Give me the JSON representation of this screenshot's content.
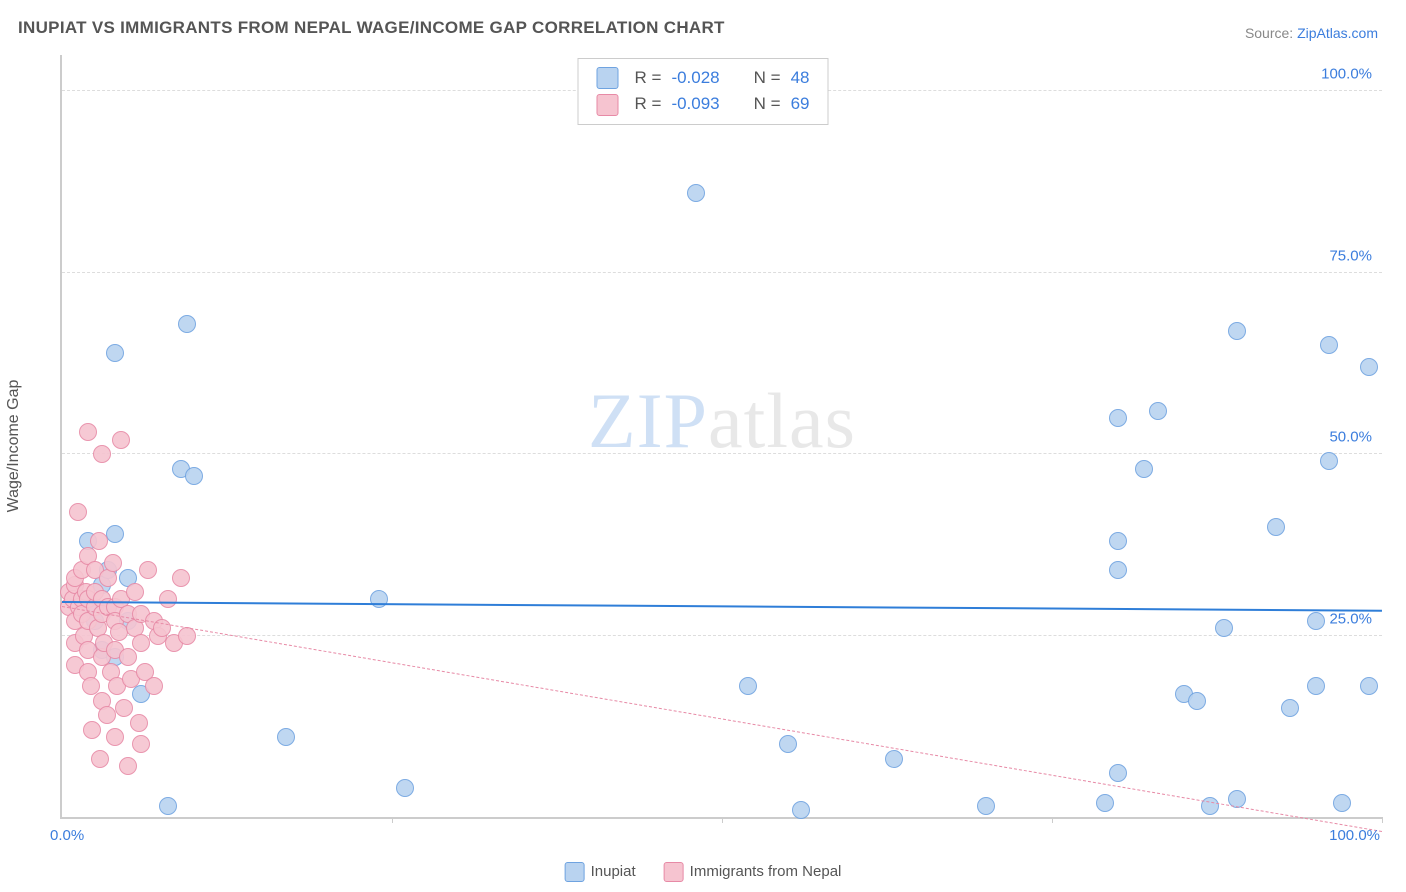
{
  "title": "INUPIAT VS IMMIGRANTS FROM NEPAL WAGE/INCOME GAP CORRELATION CHART",
  "source_prefix": "Source: ",
  "source_link": "ZipAtlas.com",
  "ylabel": "Wage/Income Gap",
  "watermark_a": "ZIP",
  "watermark_b": "atlas",
  "chart": {
    "type": "scatter",
    "background_color": "#ffffff",
    "grid_color": "#dddddd",
    "axis_color": "#cccccc",
    "xlim": [
      0,
      100
    ],
    "ylim": [
      0,
      105
    ],
    "ytick_values": [
      25,
      50,
      75,
      100
    ],
    "ytick_labels": [
      "25.0%",
      "50.0%",
      "75.0%",
      "100.0%"
    ],
    "xtick_left": "0.0%",
    "xtick_right": "100.0%",
    "xtick_positions": [
      25,
      50,
      75,
      100
    ],
    "point_radius": 9,
    "point_border_width": 1.2,
    "point_fill_opacity": 0.35
  },
  "series": [
    {
      "key": "inupiat",
      "label": "Inupiat",
      "fill": "#b9d3f0",
      "stroke": "#6fa3e0",
      "trend": {
        "y_at_x0": 29.5,
        "y_at_x100": 28.3,
        "color": "#2f7ed8",
        "width": 2.3,
        "dash": "solid"
      },
      "R_label": "R = ",
      "R_value": "-0.028",
      "N_label": "N = ",
      "N_value": "48",
      "points": [
        [
          1.5,
          30
        ],
        [
          2,
          29
        ],
        [
          2,
          38
        ],
        [
          2.5,
          27
        ],
        [
          3,
          32
        ],
        [
          3,
          23
        ],
        [
          3.5,
          34
        ],
        [
          4,
          39
        ],
        [
          4,
          64
        ],
        [
          5,
          33
        ],
        [
          5,
          27
        ],
        [
          9,
          48
        ],
        [
          10,
          47
        ],
        [
          9.5,
          68
        ],
        [
          4,
          22
        ],
        [
          6,
          17
        ],
        [
          8,
          1.5
        ],
        [
          17,
          11
        ],
        [
          24,
          30
        ],
        [
          26,
          4
        ],
        [
          48,
          86
        ],
        [
          52,
          18
        ],
        [
          55,
          10
        ],
        [
          56,
          1
        ],
        [
          63,
          8
        ],
        [
          70,
          1.5
        ],
        [
          79,
          2
        ],
        [
          80,
          34
        ],
        [
          80,
          38
        ],
        [
          80,
          55
        ],
        [
          80,
          6
        ],
        [
          82,
          48
        ],
        [
          83,
          56
        ],
        [
          88,
          26
        ],
        [
          85,
          17
        ],
        [
          86,
          16
        ],
        [
          87,
          1.5
        ],
        [
          89,
          2.5
        ],
        [
          89,
          67
        ],
        [
          92,
          40
        ],
        [
          93,
          15
        ],
        [
          95,
          18
        ],
        [
          95,
          27
        ],
        [
          96,
          49
        ],
        [
          96,
          65
        ],
        [
          97,
          2
        ],
        [
          99,
          18
        ],
        [
          99,
          62
        ]
      ]
    },
    {
      "key": "nepal",
      "label": "Immigrants from Nepal",
      "fill": "#f6c4d0",
      "stroke": "#e78aa6",
      "trend": {
        "y_at_x0": 29.0,
        "y_at_x100": -2.0,
        "color": "#e78aa6",
        "width": 1.2,
        "dash": "dashed"
      },
      "R_label": "R = ",
      "R_value": "-0.093",
      "N_label": "N = ",
      "N_value": "69",
      "points": [
        [
          0.5,
          29
        ],
        [
          0.5,
          31
        ],
        [
          0.8,
          30
        ],
        [
          1,
          32
        ],
        [
          1,
          27
        ],
        [
          1,
          24
        ],
        [
          1,
          21
        ],
        [
          1,
          33
        ],
        [
          1.2,
          42
        ],
        [
          1.3,
          29
        ],
        [
          1.5,
          30
        ],
        [
          1.5,
          28
        ],
        [
          1.5,
          34
        ],
        [
          1.7,
          25
        ],
        [
          1.8,
          31
        ],
        [
          2,
          30
        ],
        [
          2,
          27
        ],
        [
          2,
          23
        ],
        [
          2,
          20
        ],
        [
          2,
          36
        ],
        [
          2,
          53
        ],
        [
          2.2,
          18
        ],
        [
          2.3,
          12
        ],
        [
          2.5,
          29
        ],
        [
          2.5,
          31
        ],
        [
          2.5,
          34
        ],
        [
          2.7,
          26
        ],
        [
          2.8,
          38
        ],
        [
          2.9,
          8
        ],
        [
          3,
          30
        ],
        [
          3,
          28
        ],
        [
          3,
          22
        ],
        [
          3,
          16
        ],
        [
          3,
          50
        ],
        [
          3.2,
          24
        ],
        [
          3.4,
          14
        ],
        [
          3.5,
          33
        ],
        [
          3.5,
          29
        ],
        [
          3.7,
          20
        ],
        [
          3.9,
          35
        ],
        [
          4,
          29
        ],
        [
          4,
          27
        ],
        [
          4,
          23
        ],
        [
          4,
          11
        ],
        [
          4.2,
          18
        ],
        [
          4.3,
          25.5
        ],
        [
          4.5,
          30
        ],
        [
          4.5,
          52
        ],
        [
          4.7,
          15
        ],
        [
          5,
          28
        ],
        [
          5,
          22
        ],
        [
          5,
          7
        ],
        [
          5.2,
          19
        ],
        [
          5.5,
          31
        ],
        [
          5.5,
          26
        ],
        [
          5.8,
          13
        ],
        [
          6,
          28
        ],
        [
          6,
          24
        ],
        [
          6,
          10
        ],
        [
          6.3,
          20
        ],
        [
          6.5,
          34
        ],
        [
          7,
          27
        ],
        [
          7,
          18
        ],
        [
          7.3,
          25
        ],
        [
          7.6,
          26
        ],
        [
          8,
          30
        ],
        [
          8.5,
          24
        ],
        [
          9,
          33
        ],
        [
          9.5,
          25
        ]
      ]
    }
  ]
}
